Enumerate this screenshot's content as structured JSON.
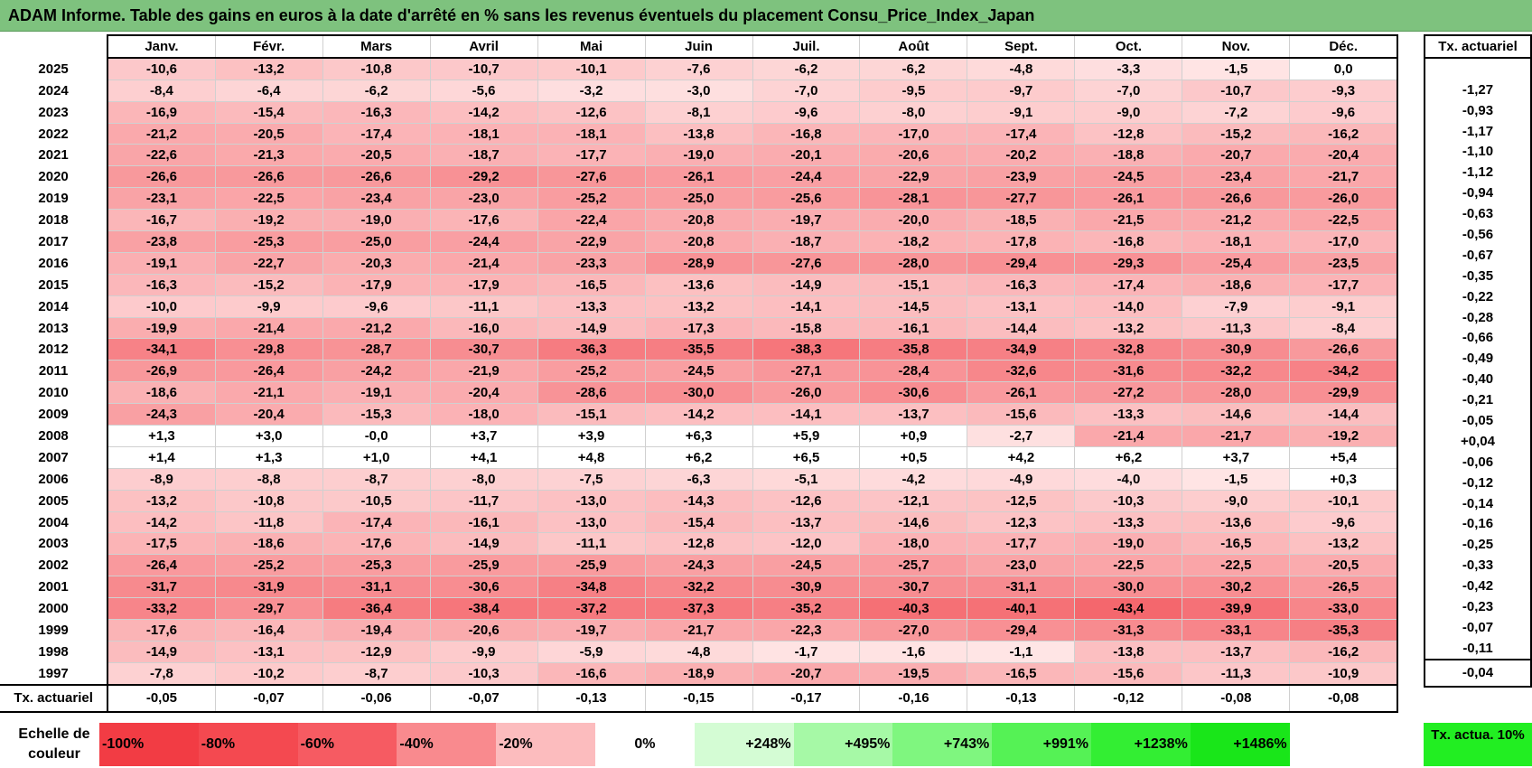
{
  "title": "ADAM Informe. Table des gains en euros à la date d'arrêté en % sans les revenus éventuels du placement Consu_Price_Index_Japan",
  "months": [
    "Janv.",
    "Févr.",
    "Mars",
    "Avril",
    "Mai",
    "Juin",
    "Juil.",
    "Août",
    "Sept.",
    "Oct.",
    "Nov.",
    "Déc."
  ],
  "side_header": "Tx. actuariel",
  "rows": [
    {
      "year": "2025",
      "values": [
        "-10,6",
        "-13,2",
        "-10,8",
        "-10,7",
        "-10,1",
        "-7,6",
        "-6,2",
        "-6,2",
        "-4,8",
        "-3,3",
        "-1,5",
        "0,0"
      ],
      "rate": ""
    },
    {
      "year": "2024",
      "values": [
        "-8,4",
        "-6,4",
        "-6,2",
        "-5,6",
        "-3,2",
        "-3,0",
        "-7,0",
        "-9,5",
        "-9,7",
        "-7,0",
        "-10,7",
        "-9,3"
      ],
      "rate": "-1,27"
    },
    {
      "year": "2023",
      "values": [
        "-16,9",
        "-15,4",
        "-16,3",
        "-14,2",
        "-12,6",
        "-8,1",
        "-9,6",
        "-8,0",
        "-9,1",
        "-9,0",
        "-7,2",
        "-9,6"
      ],
      "rate": "-0,93"
    },
    {
      "year": "2022",
      "values": [
        "-21,2",
        "-20,5",
        "-17,4",
        "-18,1",
        "-18,1",
        "-13,8",
        "-16,8",
        "-17,0",
        "-17,4",
        "-12,8",
        "-15,2",
        "-16,2"
      ],
      "rate": "-1,17"
    },
    {
      "year": "2021",
      "values": [
        "-22,6",
        "-21,3",
        "-20,5",
        "-18,7",
        "-17,7",
        "-19,0",
        "-20,1",
        "-20,6",
        "-20,2",
        "-18,8",
        "-20,7",
        "-20,4"
      ],
      "rate": "-1,10"
    },
    {
      "year": "2020",
      "values": [
        "-26,6",
        "-26,6",
        "-26,6",
        "-29,2",
        "-27,6",
        "-26,1",
        "-24,4",
        "-22,9",
        "-23,9",
        "-24,5",
        "-23,4",
        "-21,7"
      ],
      "rate": "-1,12"
    },
    {
      "year": "2019",
      "values": [
        "-23,1",
        "-22,5",
        "-23,4",
        "-23,0",
        "-25,2",
        "-25,0",
        "-25,6",
        "-28,1",
        "-27,7",
        "-26,1",
        "-26,6",
        "-26,0"
      ],
      "rate": "-0,94"
    },
    {
      "year": "2018",
      "values": [
        "-16,7",
        "-19,2",
        "-19,0",
        "-17,6",
        "-22,4",
        "-20,8",
        "-19,7",
        "-20,0",
        "-18,5",
        "-21,5",
        "-21,2",
        "-22,5"
      ],
      "rate": "-0,63"
    },
    {
      "year": "2017",
      "values": [
        "-23,8",
        "-25,3",
        "-25,0",
        "-24,4",
        "-22,9",
        "-20,8",
        "-18,7",
        "-18,2",
        "-17,8",
        "-16,8",
        "-18,1",
        "-17,0"
      ],
      "rate": "-0,56"
    },
    {
      "year": "2016",
      "values": [
        "-19,1",
        "-22,7",
        "-20,3",
        "-21,4",
        "-23,3",
        "-28,9",
        "-27,6",
        "-28,0",
        "-29,4",
        "-29,3",
        "-25,4",
        "-23,5"
      ],
      "rate": "-0,67"
    },
    {
      "year": "2015",
      "values": [
        "-16,3",
        "-15,2",
        "-17,9",
        "-17,9",
        "-16,5",
        "-13,6",
        "-14,9",
        "-15,1",
        "-16,3",
        "-17,4",
        "-18,6",
        "-17,7"
      ],
      "rate": "-0,35"
    },
    {
      "year": "2014",
      "values": [
        "-10,0",
        "-9,9",
        "-9,6",
        "-11,1",
        "-13,3",
        "-13,2",
        "-14,1",
        "-14,5",
        "-13,1",
        "-14,0",
        "-7,9",
        "-9,1"
      ],
      "rate": "-0,22"
    },
    {
      "year": "2013",
      "values": [
        "-19,9",
        "-21,4",
        "-21,2",
        "-16,0",
        "-14,9",
        "-17,3",
        "-15,8",
        "-16,1",
        "-14,4",
        "-13,2",
        "-11,3",
        "-8,4"
      ],
      "rate": "-0,28"
    },
    {
      "year": "2012",
      "values": [
        "-34,1",
        "-29,8",
        "-28,7",
        "-30,7",
        "-36,3",
        "-35,5",
        "-38,3",
        "-35,8",
        "-34,9",
        "-32,8",
        "-30,9",
        "-26,6"
      ],
      "rate": "-0,66"
    },
    {
      "year": "2011",
      "values": [
        "-26,9",
        "-26,4",
        "-24,2",
        "-21,9",
        "-25,2",
        "-24,5",
        "-27,1",
        "-28,4",
        "-32,6",
        "-31,6",
        "-32,2",
        "-34,2"
      ],
      "rate": "-0,49"
    },
    {
      "year": "2010",
      "values": [
        "-18,6",
        "-21,1",
        "-19,1",
        "-20,4",
        "-28,6",
        "-30,0",
        "-26,0",
        "-30,6",
        "-26,1",
        "-27,2",
        "-28,0",
        "-29,9"
      ],
      "rate": "-0,40"
    },
    {
      "year": "2009",
      "values": [
        "-24,3",
        "-20,4",
        "-15,3",
        "-18,0",
        "-15,1",
        "-14,2",
        "-14,1",
        "-13,7",
        "-15,6",
        "-13,3",
        "-14,6",
        "-14,4"
      ],
      "rate": "-0,21"
    },
    {
      "year": "2008",
      "values": [
        "+1,3",
        "+3,0",
        "-0,0",
        "+3,7",
        "+3,9",
        "+6,3",
        "+5,9",
        "+0,9",
        "-2,7",
        "-21,4",
        "-21,7",
        "-19,2"
      ],
      "rate": "-0,05"
    },
    {
      "year": "2007",
      "values": [
        "+1,4",
        "+1,3",
        "+1,0",
        "+4,1",
        "+4,8",
        "+6,2",
        "+6,5",
        "+0,5",
        "+4,2",
        "+6,2",
        "+3,7",
        "+5,4"
      ],
      "rate": "+0,04"
    },
    {
      "year": "2006",
      "values": [
        "-8,9",
        "-8,8",
        "-8,7",
        "-8,0",
        "-7,5",
        "-6,3",
        "-5,1",
        "-4,2",
        "-4,9",
        "-4,0",
        "-1,5",
        "+0,3"
      ],
      "rate": "-0,06"
    },
    {
      "year": "2005",
      "values": [
        "-13,2",
        "-10,8",
        "-10,5",
        "-11,7",
        "-13,0",
        "-14,3",
        "-12,6",
        "-12,1",
        "-12,5",
        "-10,3",
        "-9,0",
        "-10,1"
      ],
      "rate": "-0,12"
    },
    {
      "year": "2004",
      "values": [
        "-14,2",
        "-11,8",
        "-17,4",
        "-16,1",
        "-13,0",
        "-15,4",
        "-13,7",
        "-14,6",
        "-12,3",
        "-13,3",
        "-13,6",
        "-9,6"
      ],
      "rate": "-0,14"
    },
    {
      "year": "2003",
      "values": [
        "-17,5",
        "-18,6",
        "-17,6",
        "-14,9",
        "-11,1",
        "-12,8",
        "-12,0",
        "-18,0",
        "-17,7",
        "-19,0",
        "-16,5",
        "-13,2"
      ],
      "rate": "-0,16"
    },
    {
      "year": "2002",
      "values": [
        "-26,4",
        "-25,2",
        "-25,3",
        "-25,9",
        "-25,9",
        "-24,3",
        "-24,5",
        "-25,7",
        "-23,0",
        "-22,5",
        "-22,5",
        "-20,5"
      ],
      "rate": "-0,25"
    },
    {
      "year": "2001",
      "values": [
        "-31,7",
        "-31,9",
        "-31,1",
        "-30,6",
        "-34,8",
        "-32,2",
        "-30,9",
        "-30,7",
        "-31,1",
        "-30,0",
        "-30,2",
        "-26,5"
      ],
      "rate": "-0,33"
    },
    {
      "year": "2000",
      "values": [
        "-33,2",
        "-29,7",
        "-36,4",
        "-38,4",
        "-37,2",
        "-37,3",
        "-35,2",
        "-40,3",
        "-40,1",
        "-43,4",
        "-39,9",
        "-33,0"
      ],
      "rate": "-0,42"
    },
    {
      "year": "1999",
      "values": [
        "-17,6",
        "-16,4",
        "-19,4",
        "-20,6",
        "-19,7",
        "-21,7",
        "-22,3",
        "-27,0",
        "-29,4",
        "-31,3",
        "-33,1",
        "-35,3"
      ],
      "rate": "-0,23"
    },
    {
      "year": "1998",
      "values": [
        "-14,9",
        "-13,1",
        "-12,9",
        "-9,9",
        "-5,9",
        "-4,8",
        "-1,7",
        "-1,6",
        "-1,1",
        "-13,8",
        "-13,7",
        "-16,2"
      ],
      "rate": "-0,07"
    },
    {
      "year": "1997",
      "values": [
        "-7,8",
        "-10,2",
        "-8,7",
        "-10,3",
        "-16,6",
        "-18,9",
        "-20,7",
        "-19,5",
        "-16,5",
        "-15,6",
        "-11,3",
        "-10,9"
      ],
      "rate": "-0,11"
    }
  ],
  "actuarial_row": {
    "label": "Tx. actuariel",
    "values": [
      "-0,05",
      "-0,07",
      "-0,06",
      "-0,07",
      "-0,13",
      "-0,15",
      "-0,17",
      "-0,16",
      "-0,13",
      "-0,12",
      "-0,08",
      "-0,08"
    ],
    "total": "-0,04"
  },
  "scale": {
    "label": "Echelle de couleur",
    "items": [
      {
        "text": "-100%",
        "color": "#f23c44"
      },
      {
        "text": "-80%",
        "color": "#f44950"
      },
      {
        "text": "-60%",
        "color": "#f65b62"
      },
      {
        "text": "-40%",
        "color": "#f98a8e"
      },
      {
        "text": "-20%",
        "color": "#fcbcbe"
      },
      {
        "text": "0%",
        "color": "#ffffff"
      },
      {
        "text": "+248%",
        "color": "#d4fcd4"
      },
      {
        "text": "+495%",
        "color": "#a6f9a6"
      },
      {
        "text": "+743%",
        "color": "#7ff67f"
      },
      {
        "text": "+991%",
        "color": "#55f255"
      },
      {
        "text": "+1238%",
        "color": "#33ee33"
      },
      {
        "text": "+1486%",
        "color": "#19e619"
      }
    ],
    "actua10": "Tx. actua. 10%",
    "actua10_color": "#22ee22"
  }
}
